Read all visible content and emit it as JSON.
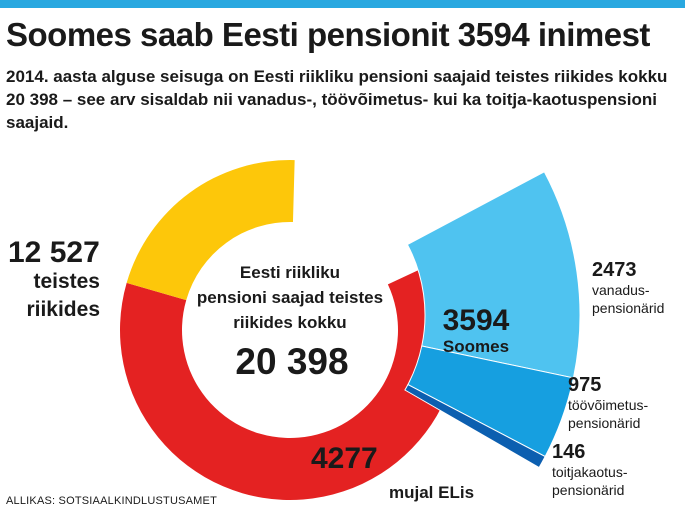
{
  "header": {
    "title": "Soomes saab Eesti pensionit 3594 inimest",
    "subtitle": "2014. aasta alguse seisuga on Eesti riikliku pensioni saajaid teistes riikides kokku 20 398 – see arv sisaldab nii vanadus-, töövõimetus- kui ka toitja-kaotuspensioni saajaid."
  },
  "source": "ALLIKAS: SOTSIAALKINDLUSTUSAMET",
  "chart_data": {
    "type": "pie",
    "title": "Soomes saab Eesti pensionit 3594 inimest",
    "center_label": [
      "Eesti riikliku",
      "pensioni saajad teistes",
      "riikides kokku"
    ],
    "center_value": "20 398",
    "total": 20398,
    "slices": [
      {
        "label": "teistes riikides",
        "label_lines": [
          "teistes",
          "riikides"
        ],
        "value": 12527,
        "value_text": "12 527",
        "color": "#e42222"
      },
      {
        "label": "mujal ELis",
        "label_lines": [
          "mujal ELis"
        ],
        "value": 4277,
        "value_text": "4277",
        "color": "#fdc70a"
      },
      {
        "label": "Soomes",
        "label_lines": [
          "Soomes"
        ],
        "value": 3594,
        "value_text": "3594",
        "color": "#4fc3f0"
      }
    ],
    "breakdown": {
      "of": "Soomes",
      "items": [
        {
          "label": "vanaduspensionärid",
          "label_lines": [
            "vanadus-",
            "pensionärid"
          ],
          "value": 2473,
          "value_text": "2473",
          "color": "#4fc3f0"
        },
        {
          "label": "töövõimetuspensionärid",
          "label_lines": [
            "töövõimetus-",
            "pensionärid"
          ],
          "value": 975,
          "value_text": "975",
          "color": "#169fe0"
        },
        {
          "label": "toitjakaotuspensionärid",
          "label_lines": [
            "toitjakaotus-",
            "pensionärid"
          ],
          "value": 146,
          "value_text": "146",
          "color": "#0c5fb0"
        }
      ]
    }
  }
}
